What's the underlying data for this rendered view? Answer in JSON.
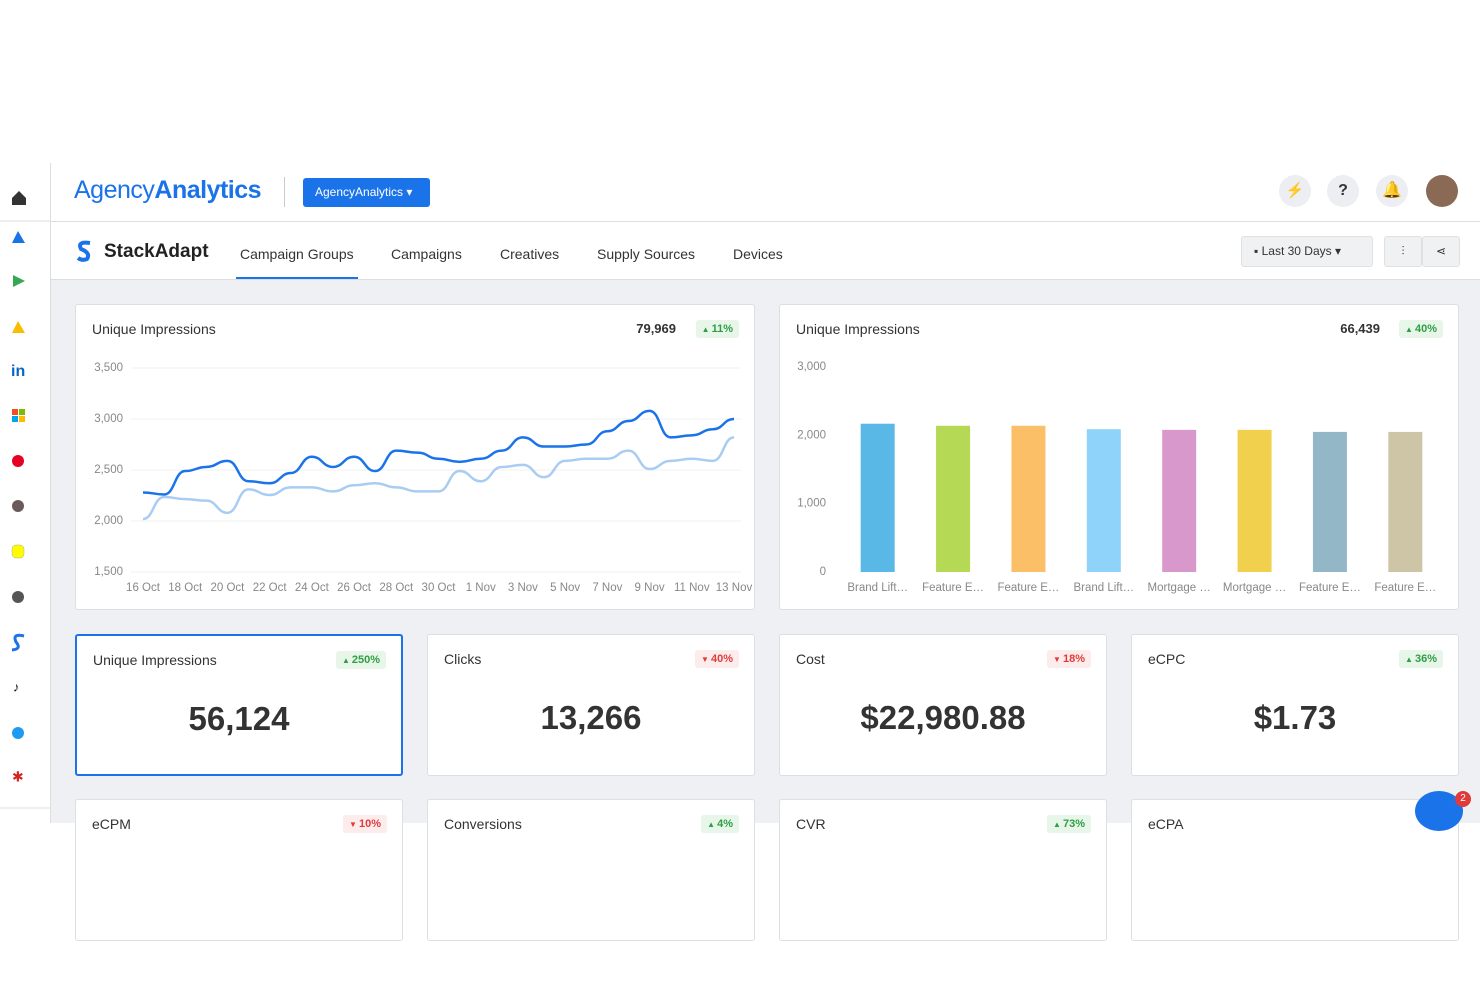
{
  "header": {
    "logo_light": "Agency",
    "logo_bold": "Analytics",
    "account_button": "AgencyAnalytics"
  },
  "nav": {
    "brand": "StackAdapt",
    "tabs": [
      "Campaign Groups",
      "Campaigns",
      "Creatives",
      "Supply Sources",
      "Devices"
    ],
    "active_tab": 0,
    "date_range": "Last 30 Days"
  },
  "line_card": {
    "title": "Unique Impressions",
    "total": "79,969",
    "change": "11%",
    "direction": "up"
  },
  "bar_card": {
    "title": "Unique Impressions",
    "total": "66,439",
    "change": "40%",
    "direction": "up"
  },
  "chart_data": [
    {
      "type": "line",
      "categories": [
        "16 Oct",
        null,
        "18 Oct",
        null,
        "20 Oct",
        null,
        "22 Oct",
        null,
        "24 Oct",
        null,
        "26 Oct",
        null,
        "28 Oct",
        null,
        "30 Oct",
        null,
        "1 Nov",
        null,
        "3 Nov",
        null,
        "5 Nov",
        null,
        "7 Nov",
        null,
        "9 Nov",
        null,
        "11 Nov",
        null,
        "13 Nov"
      ],
      "series": [
        {
          "color": "#1a73e8",
          "values": [
            2280,
            2260,
            2490,
            2530,
            2590,
            2390,
            2370,
            2470,
            2630,
            2530,
            2630,
            2490,
            2690,
            2670,
            2610,
            2580,
            2610,
            2690,
            2820,
            2730,
            2730,
            2750,
            2880,
            2980,
            3080,
            2820,
            2840,
            2900,
            3000
          ]
        },
        {
          "color": "#a9cdf2",
          "values": [
            2020,
            2235,
            2215,
            2200,
            2080,
            2310,
            2255,
            2330,
            2330,
            2290,
            2350,
            2370,
            2330,
            2290,
            2290,
            2490,
            2390,
            2530,
            2550,
            2430,
            2590,
            2610,
            2610,
            2690,
            2510,
            2590,
            2610,
            2590,
            2820
          ]
        }
      ],
      "ylim": [
        1500,
        3500
      ],
      "yticks": [
        {
          "value": 1500,
          "label": "1,500"
        },
        {
          "value": 2000,
          "label": "2,000"
        },
        {
          "value": 2500,
          "label": "2,500"
        },
        {
          "value": 3000,
          "label": "3,000"
        },
        {
          "value": 3500,
          "label": "3,500"
        }
      ],
      "grid": true
    },
    {
      "type": "bar",
      "categories": [
        "Brand Lift…",
        "Feature E…",
        "Feature E…",
        "Brand Lift…",
        "Mortgage …",
        "Mortgage …",
        "Feature E…",
        "Feature E…"
      ],
      "values": [
        2170,
        2140,
        2140,
        2090,
        2080,
        2080,
        2050,
        2050
      ],
      "colors": [
        "#5ab8e6",
        "#b5d855",
        "#fbbf68",
        "#8fd3fb",
        "#d898cc",
        "#f0d04c",
        "#93b7c6",
        "#cdc5a5"
      ],
      "ylim": [
        0,
        3000
      ],
      "yticks": [
        0,
        {
          "value": 1000,
          "label": "1,000"
        },
        {
          "value": 2000,
          "label": "2,000"
        },
        {
          "value": 3000,
          "label": "3,000"
        }
      ],
      "grid": false
    }
  ],
  "stats": [
    {
      "title": "Unique Impressions",
      "value": "56,124",
      "change": "250%",
      "direction": "up"
    },
    {
      "title": "Clicks",
      "value": "13,266",
      "change": "40%",
      "direction": "down"
    },
    {
      "title": "Cost",
      "value": "$22,980.88",
      "change": "18%",
      "direction": "down"
    },
    {
      "title": "eCPC",
      "value": "$1.73",
      "change": "36%",
      "direction": "up"
    },
    {
      "title": "eCPM",
      "change": "10%",
      "direction": "down"
    },
    {
      "title": "Conversions",
      "change": "4%",
      "direction": "up"
    },
    {
      "title": "CVR",
      "change": "73%",
      "direction": "up"
    },
    {
      "title": "eCPA"
    }
  ],
  "chat_badge": "2"
}
